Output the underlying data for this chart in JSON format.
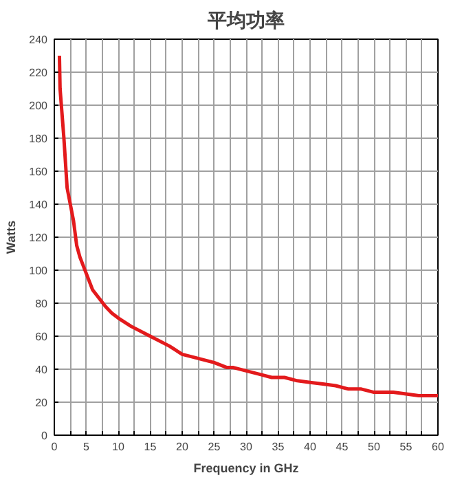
{
  "chart_data": {
    "type": "line",
    "title": "平均功率",
    "xlabel": "Frequency in GHz",
    "ylabel": "Watts",
    "series": [
      {
        "color": "#e31a1c",
        "x": [
          0.8,
          0.9,
          1.5,
          2,
          3,
          3.5,
          4,
          5,
          6,
          7,
          8,
          9,
          10,
          12,
          15,
          18,
          20,
          22,
          25,
          27,
          28,
          30,
          32,
          34,
          36,
          38,
          40,
          42,
          44,
          46,
          48,
          50,
          53,
          55,
          57,
          60
        ],
        "values": [
          230,
          210,
          180,
          150,
          130,
          115,
          108,
          98,
          88,
          83,
          78,
          74,
          71,
          66,
          60,
          54,
          49,
          47,
          44,
          41,
          41,
          39,
          37,
          35,
          35,
          33,
          32,
          31,
          30,
          28,
          28,
          26,
          26,
          25,
          24,
          24
        ]
      }
    ],
    "xlim": [
      0,
      60
    ],
    "ylim": [
      0,
      240
    ],
    "xticks": [
      0,
      {
        "value": 2.5,
        "label": null
      },
      5,
      {
        "value": 7.5,
        "label": null
      },
      10,
      {
        "value": 12.5,
        "label": null
      },
      15,
      {
        "value": 17.5,
        "label": null
      },
      20,
      {
        "value": 22.5,
        "label": null
      },
      25,
      {
        "value": 27.5,
        "label": null
      },
      30,
      {
        "value": 32.5,
        "label": null
      },
      35,
      {
        "value": 37.5,
        "label": null
      },
      40,
      {
        "value": 42.5,
        "label": null
      },
      45,
      {
        "value": 47.5,
        "label": null
      },
      50,
      {
        "value": 52.5,
        "label": null
      },
      55,
      {
        "value": 57.5,
        "label": null
      },
      60
    ],
    "yticks": [
      0,
      20,
      40,
      60,
      80,
      100,
      120,
      140,
      160,
      180,
      200,
      220,
      240
    ],
    "grid": true,
    "marker": "none",
    "line_style": "solid"
  }
}
